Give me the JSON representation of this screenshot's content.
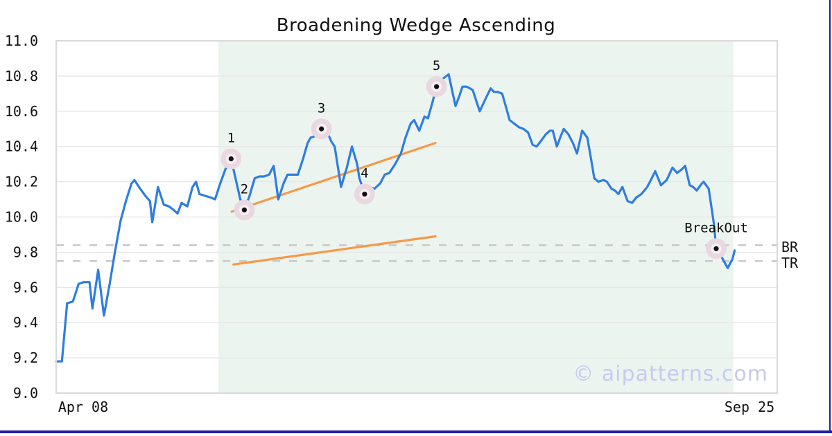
{
  "watermark": "© aipatterns.com",
  "colors": {
    "price_line": "#2e7de0",
    "trendline": "#f99845",
    "shade": "#ecf4f0",
    "grid": "#e7e7e7",
    "frame": "#d9d9d9",
    "dashed_level": "#c8c8c8",
    "halo_outer": "#e9d8e0",
    "halo_inner": "#f6eef2",
    "marker_dot": "#111111",
    "watermark": "#c9c9ef",
    "footer_bar": "#2020a0",
    "text": "#111111"
  },
  "chart_data": {
    "type": "line",
    "title": "Broadening Wedge Ascending",
    "x_unit": "trading days (unlabeled date axis)",
    "x_range": [
      0,
      125.3
    ],
    "y_range": [
      9.0,
      11.0
    ],
    "grid": "horizontal",
    "legend": "none",
    "y_ticks": [
      "11.0",
      "10.8",
      "10.6",
      "10.4",
      "10.2",
      "10.0",
      "9.8",
      "9.6",
      "9.4",
      "9.2",
      "9.0"
    ],
    "x_ticks": [
      {
        "label": "Apr 08",
        "x": 4.7
      },
      {
        "label": "Sep 25",
        "x": 120.5
      }
    ],
    "levels": [
      {
        "label": "BR",
        "value": 9.84
      },
      {
        "label": "TR",
        "value": 9.75
      }
    ],
    "shaded_region": {
      "x1": 28.2,
      "x2": 117.7
    },
    "trendlines": [
      {
        "name": "upper-trendline",
        "x1": 30.5,
        "y1": 10.03,
        "x2": 65.9,
        "y2": 10.42
      },
      {
        "name": "lower-trendline",
        "x1": 30.8,
        "y1": 9.73,
        "x2": 65.9,
        "y2": 9.89
      }
    ],
    "pattern_points": [
      {
        "label": "1",
        "x": 30.4,
        "y": 10.33
      },
      {
        "label": "2",
        "x": 32.7,
        "y": 10.04
      },
      {
        "label": "3",
        "x": 46.1,
        "y": 10.5
      },
      {
        "label": "4",
        "x": 53.6,
        "y": 10.13
      },
      {
        "label": "5",
        "x": 66.1,
        "y": 10.74
      },
      {
        "label": "BreakOut",
        "x": 114.7,
        "y": 9.82
      }
    ],
    "series": [
      {
        "name": "price",
        "points": [
          [
            0,
            9.18
          ],
          [
            1,
            9.18
          ],
          [
            1.9,
            9.51
          ],
          [
            2.9,
            9.52
          ],
          [
            3.9,
            9.62
          ],
          [
            4.8,
            9.63
          ],
          [
            5.8,
            9.63
          ],
          [
            6.3,
            9.48
          ],
          [
            7.3,
            9.7
          ],
          [
            8.3,
            9.44
          ],
          [
            9.3,
            9.62
          ],
          [
            10.2,
            9.8
          ],
          [
            11.2,
            9.98
          ],
          [
            12.2,
            10.1
          ],
          [
            13.1,
            10.19
          ],
          [
            13.6,
            10.21
          ],
          [
            14.6,
            10.16
          ],
          [
            15.5,
            10.12
          ],
          [
            16.3,
            10.09
          ],
          [
            16.7,
            9.97
          ],
          [
            17.7,
            10.17
          ],
          [
            18.7,
            10.07
          ],
          [
            19.6,
            10.06
          ],
          [
            20.4,
            10.04
          ],
          [
            21.1,
            10.02
          ],
          [
            21.8,
            10.08
          ],
          [
            22.8,
            10.06
          ],
          [
            23.7,
            10.17
          ],
          [
            24.3,
            10.2
          ],
          [
            24.9,
            10.13
          ],
          [
            25.9,
            10.12
          ],
          [
            26.9,
            10.11
          ],
          [
            27.6,
            10.1
          ],
          [
            28.4,
            10.18
          ],
          [
            29.4,
            10.27
          ],
          [
            30.4,
            10.33
          ],
          [
            31.3,
            10.2
          ],
          [
            32,
            10.1
          ],
          [
            32.7,
            10.04
          ],
          [
            33.6,
            10.12
          ],
          [
            34.5,
            10.22
          ],
          [
            35.3,
            10.23
          ],
          [
            36.1,
            10.23
          ],
          [
            37,
            10.24
          ],
          [
            37.8,
            10.29
          ],
          [
            38.6,
            10.1
          ],
          [
            39.5,
            10.19
          ],
          [
            40.2,
            10.24
          ],
          [
            41.2,
            10.24
          ],
          [
            42,
            10.24
          ],
          [
            42.9,
            10.33
          ],
          [
            43.7,
            10.42
          ],
          [
            44.2,
            10.45
          ],
          [
            45.1,
            10.46
          ],
          [
            46.1,
            10.5
          ],
          [
            47,
            10.49
          ],
          [
            47.8,
            10.43
          ],
          [
            48.4,
            10.4
          ],
          [
            49.5,
            10.17
          ],
          [
            50.5,
            10.28
          ],
          [
            51.4,
            10.4
          ],
          [
            52.3,
            10.3
          ],
          [
            52.7,
            10.22
          ],
          [
            53.6,
            10.13
          ],
          [
            54.5,
            10.17
          ],
          [
            55.3,
            10.16
          ],
          [
            56.3,
            10.19
          ],
          [
            57.1,
            10.24
          ],
          [
            57.9,
            10.25
          ],
          [
            58.9,
            10.3
          ],
          [
            59.9,
            10.36
          ],
          [
            60.7,
            10.45
          ],
          [
            61.6,
            10.53
          ],
          [
            62.2,
            10.55
          ],
          [
            63.1,
            10.49
          ],
          [
            64,
            10.57
          ],
          [
            64.6,
            10.56
          ],
          [
            65.3,
            10.64
          ],
          [
            66.1,
            10.74
          ],
          [
            67,
            10.78
          ],
          [
            68.2,
            10.81
          ],
          [
            68.8,
            10.72
          ],
          [
            69.4,
            10.63
          ],
          [
            70.1,
            10.69
          ],
          [
            70.6,
            10.74
          ],
          [
            71.3,
            10.74
          ],
          [
            71.9,
            10.73
          ],
          [
            72.4,
            10.72
          ],
          [
            73.1,
            10.65
          ],
          [
            73.6,
            10.6
          ],
          [
            74.6,
            10.67
          ],
          [
            75.5,
            10.73
          ],
          [
            76.1,
            10.71
          ],
          [
            76.7,
            10.71
          ],
          [
            77.5,
            10.7
          ],
          [
            78.2,
            10.62
          ],
          [
            78.8,
            10.55
          ],
          [
            79.6,
            10.53
          ],
          [
            80.4,
            10.51
          ],
          [
            81.2,
            10.5
          ],
          [
            82,
            10.48
          ],
          [
            82.8,
            10.41
          ],
          [
            83.5,
            10.4
          ],
          [
            84.2,
            10.43
          ],
          [
            85.1,
            10.47
          ],
          [
            85.8,
            10.49
          ],
          [
            86.3,
            10.49
          ],
          [
            87,
            10.4
          ],
          [
            87.7,
            10.46
          ],
          [
            88.2,
            10.5
          ],
          [
            89,
            10.47
          ],
          [
            89.8,
            10.42
          ],
          [
            90.5,
            10.36
          ],
          [
            91.4,
            10.49
          ],
          [
            92.3,
            10.45
          ],
          [
            93,
            10.32
          ],
          [
            93.5,
            10.22
          ],
          [
            94.2,
            10.2
          ],
          [
            95.1,
            10.21
          ],
          [
            95.7,
            10.2
          ],
          [
            96.5,
            10.16
          ],
          [
            97.1,
            10.15
          ],
          [
            97.7,
            10.13
          ],
          [
            98.4,
            10.17
          ],
          [
            99.3,
            10.09
          ],
          [
            100.1,
            10.08
          ],
          [
            100.8,
            10.11
          ],
          [
            101.7,
            10.13
          ],
          [
            102.7,
            10.17
          ],
          [
            103.5,
            10.22
          ],
          [
            104.1,
            10.26
          ],
          [
            105.1,
            10.18
          ],
          [
            106.1,
            10.21
          ],
          [
            107.1,
            10.28
          ],
          [
            107.9,
            10.25
          ],
          [
            108.7,
            10.27
          ],
          [
            109.3,
            10.29
          ],
          [
            110.1,
            10.18
          ],
          [
            110.7,
            10.17
          ],
          [
            111.3,
            10.15
          ],
          [
            112.2,
            10.19
          ],
          [
            112.5,
            10.2
          ],
          [
            113.4,
            10.16
          ],
          [
            114.3,
            9.96
          ],
          [
            114.7,
            9.82
          ],
          [
            115.5,
            9.78
          ],
          [
            116.7,
            9.71
          ],
          [
            117.5,
            9.76
          ],
          [
            117.9,
            9.81
          ]
        ]
      }
    ]
  }
}
